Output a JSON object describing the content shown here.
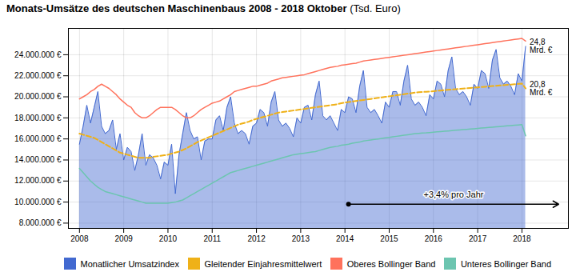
{
  "chart_data": {
    "type": "area",
    "title": "Monats-Umsätze des deutschen Maschinenbaus 2008 - 2018 Oktober",
    "subtitle": "(Tsd. Euro)",
    "x": [
      2008,
      2008.0833333333,
      2008.1666666667,
      2008.25,
      2008.3333333333,
      2008.4166666667,
      2008.5,
      2008.5833333333,
      2008.6666666667,
      2008.75,
      2008.8333333333,
      2008.9166666667,
      2009,
      2009.0833333333,
      2009.1666666667,
      2009.25,
      2009.3333333333,
      2009.4166666667,
      2009.5,
      2009.5833333333,
      2009.6666666667,
      2009.75,
      2009.8333333333,
      2009.9166666667,
      2010,
      2010.0833333333,
      2010.1666666667,
      2010.25,
      2010.3333333333,
      2010.4166666667,
      2010.5,
      2010.5833333333,
      2010.6666666667,
      2010.75,
      2010.8333333333,
      2010.9166666667,
      2011,
      2011.0833333333,
      2011.1666666667,
      2011.25,
      2011.3333333333,
      2011.4166666667,
      2011.5,
      2011.5833333333,
      2011.6666666667,
      2011.75,
      2011.8333333333,
      2011.9166666667,
      2012,
      2012.0833333333,
      2012.1666666667,
      2012.25,
      2012.3333333333,
      2012.4166666667,
      2012.5,
      2012.5833333333,
      2012.6666666667,
      2012.75,
      2012.8333333333,
      2012.9166666667,
      2013,
      2013.0833333333,
      2013.1666666667,
      2013.25,
      2013.3333333333,
      2013.4166666667,
      2013.5,
      2013.5833333333,
      2013.6666666667,
      2013.75,
      2013.8333333333,
      2013.9166666667,
      2014,
      2014.0833333333,
      2014.1666666667,
      2014.25,
      2014.3333333333,
      2014.4166666667,
      2014.5,
      2014.5833333333,
      2014.6666666667,
      2014.75,
      2014.8333333333,
      2014.9166666667,
      2015,
      2015.0833333333,
      2015.1666666667,
      2015.25,
      2015.3333333333,
      2015.4166666667,
      2015.5,
      2015.5833333333,
      2015.6666666667,
      2015.75,
      2015.8333333333,
      2015.9166666667,
      2016,
      2016.0833333333,
      2016.1666666667,
      2016.25,
      2016.3333333333,
      2016.4166666667,
      2016.5,
      2016.5833333333,
      2016.6666666667,
      2016.75,
      2016.8333333333,
      2016.9166666667,
      2017,
      2017.0833333333,
      2017.1666666667,
      2017.25,
      2017.3333333333,
      2017.4166666667,
      2017.5,
      2017.5833333333,
      2017.6666666667,
      2017.75,
      2017.8333333333,
      2017.9166666667,
      2018,
      2018.0833333333
    ],
    "series": [
      {
        "name": "Monatlicher Umsatzindex",
        "type": "area",
        "values": [
          15500000,
          17200000,
          19200000,
          17500000,
          19000000,
          20500000,
          17200000,
          16500000,
          16800000,
          17800000,
          15000000,
          16500000,
          14000000,
          15200000,
          14800000,
          13000000,
          14500000,
          16500000,
          13500000,
          14500000,
          14200000,
          13500000,
          12200000,
          13800000,
          13500000,
          15500000,
          10800000,
          14500000,
          16500000,
          18500000,
          16800000,
          16000000,
          16200000,
          14000000,
          15800000,
          16000000,
          16000000,
          17800000,
          18200000,
          16800000,
          19000000,
          20000000,
          17500000,
          16500000,
          16800000,
          16500000,
          15500000,
          17200000,
          17500000,
          18800000,
          18500000,
          17200000,
          19500000,
          20500000,
          17800000,
          17200000,
          17500000,
          17000000,
          16200000,
          18000000,
          17500000,
          19000000,
          19200000,
          17800000,
          20200000,
          21500000,
          18200000,
          17800000,
          18200000,
          17500000,
          16800000,
          18800000,
          18500000,
          20000000,
          19800000,
          18500000,
          21000000,
          22500000,
          19000000,
          18500000,
          18800000,
          18200000,
          17500000,
          19500000,
          19000000,
          20500000,
          20500000,
          19200000,
          21500000,
          23000000,
          19800000,
          19200000,
          19500000,
          19000000,
          18200000,
          20200000,
          19800000,
          21500000,
          21200000,
          20000000,
          22500000,
          23800000,
          20800000,
          20200000,
          20500000,
          20000000,
          19200000,
          21200000,
          20800000,
          22500000,
          22200000,
          20800000,
          23500000,
          24500000,
          21800000,
          21200000,
          21500000,
          21000000,
          20200000,
          22200000,
          21500000,
          24800000
        ]
      },
      {
        "name": "Gleitender Einjahresmittelwert",
        "type": "line",
        "line_style": "dashed",
        "values": [
          16500000,
          16400000,
          16300000,
          16200000,
          16100000,
          15900000,
          15700000,
          15500000,
          15300000,
          15100000,
          14900000,
          14700000,
          14600000,
          14500000,
          14400000,
          14300000,
          14200000,
          14200000,
          14200000,
          14200000,
          14300000,
          14350000,
          14400000,
          14450000,
          14500000,
          14600000,
          14700000,
          14800000,
          14950000,
          15100000,
          15300000,
          15500000,
          15700000,
          15850000,
          16000000,
          16150000,
          16300000,
          16450000,
          16600000,
          16750000,
          16900000,
          17050000,
          17200000,
          17350000,
          17450000,
          17550000,
          17650000,
          17800000,
          17900000,
          18000000,
          18100000,
          18200000,
          18300000,
          18400000,
          18500000,
          18550000,
          18600000,
          18650000,
          18700000,
          18750000,
          18800000,
          18850000,
          18900000,
          18950000,
          19000000,
          19050000,
          19100000,
          19150000,
          19200000,
          19250000,
          19300000,
          19400000,
          19450000,
          19500000,
          19550000,
          19600000,
          19650000,
          19700000,
          19750000,
          19800000,
          19850000,
          19900000,
          19950000,
          20000000,
          20050000,
          20100000,
          20150000,
          20200000,
          20250000,
          20300000,
          20350000,
          20400000,
          20430000,
          20460000,
          20480000,
          20510000,
          20540000,
          20570000,
          20600000,
          20630000,
          20660000,
          20690000,
          20720000,
          20750000,
          20780000,
          20810000,
          20840000,
          20870000,
          20900000,
          20930000,
          20960000,
          20990000,
          21020000,
          21050000,
          21080000,
          21110000,
          21140000,
          21170000,
          21200000,
          21230000,
          21260000,
          20800000
        ]
      },
      {
        "name": "Oberes Bollinger Band",
        "type": "line",
        "line_style": "solid",
        "values": [
          19800000,
          20000000,
          20200000,
          20500000,
          20700000,
          21000000,
          21200000,
          21000000,
          20800000,
          20500000,
          20200000,
          19800000,
          19500000,
          19200000,
          19000000,
          18500000,
          18200000,
          18000000,
          18000000,
          18200000,
          18500000,
          18800000,
          19000000,
          19000000,
          19000000,
          19000000,
          18800000,
          18500000,
          18200000,
          18000000,
          18000000,
          18200000,
          18500000,
          18800000,
          19000000,
          19200000,
          19400000,
          19500000,
          19600000,
          19800000,
          20000000,
          20200000,
          20500000,
          20600000,
          20700000,
          20800000,
          20900000,
          21000000,
          21000000,
          21100000,
          21200000,
          21300000,
          21500000,
          21600000,
          21700000,
          21800000,
          21850000,
          21900000,
          21950000,
          22000000,
          22050000,
          22100000,
          22200000,
          22300000,
          22400000,
          22500000,
          22600000,
          22700000,
          22800000,
          22850000,
          22900000,
          23000000,
          23050000,
          23100000,
          23150000,
          23200000,
          23300000,
          23400000,
          23450000,
          23500000,
          23550000,
          23600000,
          23650000,
          23700000,
          23750000,
          23800000,
          23850000,
          23900000,
          23950000,
          24000000,
          24050000,
          24100000,
          24150000,
          24200000,
          24250000,
          24300000,
          24350000,
          24400000,
          24450000,
          24500000,
          24550000,
          24600000,
          24650000,
          24700000,
          24750000,
          24800000,
          24850000,
          24900000,
          24950000,
          25000000,
          25050000,
          25100000,
          25150000,
          25200000,
          25250000,
          25300000,
          25350000,
          25400000,
          25450000,
          25500000,
          25550000,
          25300000
        ]
      },
      {
        "name": "Unteres Bollinger Band",
        "type": "line",
        "line_style": "solid",
        "values": [
          13200000,
          12800000,
          12400000,
          12000000,
          11700000,
          11400000,
          11200000,
          11000000,
          10900000,
          10800000,
          10700000,
          10600000,
          10500000,
          10400000,
          10300000,
          10200000,
          10100000,
          10000000,
          9900000,
          9900000,
          9900000,
          9900000,
          9900000,
          9900000,
          9900000,
          9950000,
          10000000,
          10100000,
          10200000,
          10400000,
          10600000,
          10800000,
          11000000,
          11200000,
          11400000,
          11600000,
          11800000,
          12000000,
          12200000,
          12400000,
          12600000,
          12800000,
          12900000,
          13000000,
          13100000,
          13200000,
          13300000,
          13400000,
          13500000,
          13600000,
          13700000,
          13800000,
          13900000,
          14000000,
          14100000,
          14200000,
          14300000,
          14400000,
          14500000,
          14550000,
          14600000,
          14650000,
          14700000,
          14750000,
          14800000,
          14900000,
          15000000,
          15100000,
          15200000,
          15250000,
          15300000,
          15400000,
          15450000,
          15500000,
          15600000,
          15650000,
          15700000,
          15800000,
          15850000,
          15900000,
          15950000,
          16000000,
          16050000,
          16100000,
          16150000,
          16200000,
          16250000,
          16300000,
          16350000,
          16400000,
          16450000,
          16500000,
          16530000,
          16560000,
          16580000,
          16610000,
          16640000,
          16670000,
          16700000,
          16730000,
          16760000,
          16790000,
          16820000,
          16850000,
          16880000,
          16910000,
          16940000,
          16970000,
          17000000,
          17030000,
          17060000,
          17090000,
          17120000,
          17150000,
          17180000,
          17210000,
          17240000,
          17270000,
          17300000,
          17330000,
          17360000,
          16300000
        ]
      }
    ],
    "xlim": [
      2007.75,
      2019.05
    ],
    "xticks": [
      2008,
      2009,
      2010,
      2011,
      2012,
      2013,
      2014,
      2015,
      2016,
      2017,
      2018
    ],
    "ylim": [
      7500000,
      26500000
    ],
    "yticks": [
      {
        "value": 8000000,
        "label": "8.000.000 €"
      },
      {
        "value": 10000000,
        "label": "10.000.000 €"
      },
      {
        "value": 12000000,
        "label": "12.000.000 €"
      },
      {
        "value": 14000000,
        "label": "14.000.000 €"
      },
      {
        "value": 16000000,
        "label": "16.000.000 €"
      },
      {
        "value": 18000000,
        "label": "18.000.000 €"
      },
      {
        "value": 20000000,
        "label": "20.000.000 €"
      },
      {
        "value": 22000000,
        "label": "22.000.000 €"
      },
      {
        "value": 24000000,
        "label": "24.000.000 €"
      }
    ],
    "grid": true,
    "legend": "bottom",
    "annotations": [
      {
        "text": "+3,4% pro Jahr",
        "x": 2014.08,
        "x_end": 2018.83,
        "y": 9800000
      },
      {
        "text": "24,8\nMrd. €",
        "x": 2018.0833333333,
        "y": 24800000
      },
      {
        "text": "20,8\nMrd. €",
        "x": 2018.0833333333,
        "y": 20800000
      }
    ]
  }
}
